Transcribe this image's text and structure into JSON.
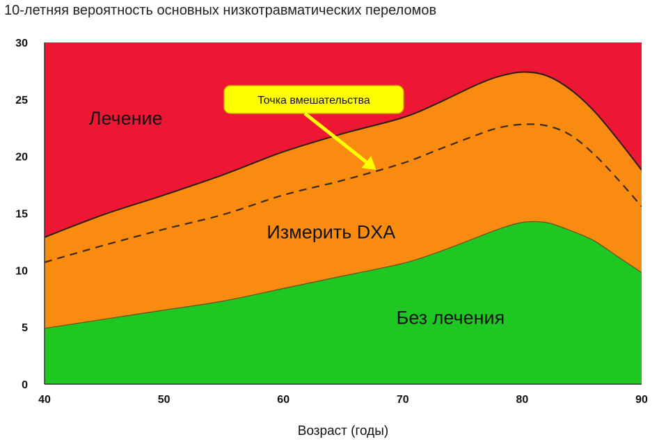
{
  "chart_data": {
    "type": "area",
    "title": "10-летняя вероятность основных низкотравматических переломов",
    "xlabel": "Возраст (годы)",
    "ylabel": "",
    "xlim": [
      40,
      90
    ],
    "ylim": [
      0,
      30
    ],
    "x_ticks": [
      40,
      50,
      60,
      70,
      80,
      90
    ],
    "y_ticks": [
      0,
      5,
      10,
      15,
      20,
      25,
      30
    ],
    "grid": false,
    "x": [
      40,
      45,
      50,
      55,
      60,
      65,
      70,
      73,
      76,
      78,
      80,
      82,
      84,
      86,
      88,
      90
    ],
    "lower_threshold": [
      4.9,
      5.7,
      6.5,
      7.3,
      8.4,
      9.5,
      10.6,
      11.6,
      12.8,
      13.6,
      14.2,
      14.2,
      13.5,
      12.6,
      11.2,
      9.8
    ],
    "upper_threshold": [
      12.9,
      14.9,
      16.6,
      18.4,
      20.4,
      22.0,
      23.4,
      24.7,
      26.2,
      27.0,
      27.4,
      27.1,
      25.9,
      24.0,
      21.5,
      18.8
    ],
    "intervention_threshold": [
      10.7,
      12.2,
      13.6,
      14.9,
      16.6,
      17.9,
      19.4,
      20.6,
      21.8,
      22.5,
      22.8,
      22.7,
      21.9,
      20.2,
      18.0,
      15.6
    ],
    "zones": [
      {
        "label": "Лечение",
        "color": "#ee1733"
      },
      {
        "label": "Измерить DXA",
        "color": "#f98c10"
      },
      {
        "label": "Без лечения",
        "color": "#1fc722"
      }
    ],
    "annotation": {
      "text": "Точка вмешательства",
      "x": 68,
      "y": 18.7,
      "box_color": "#ffff00"
    }
  }
}
